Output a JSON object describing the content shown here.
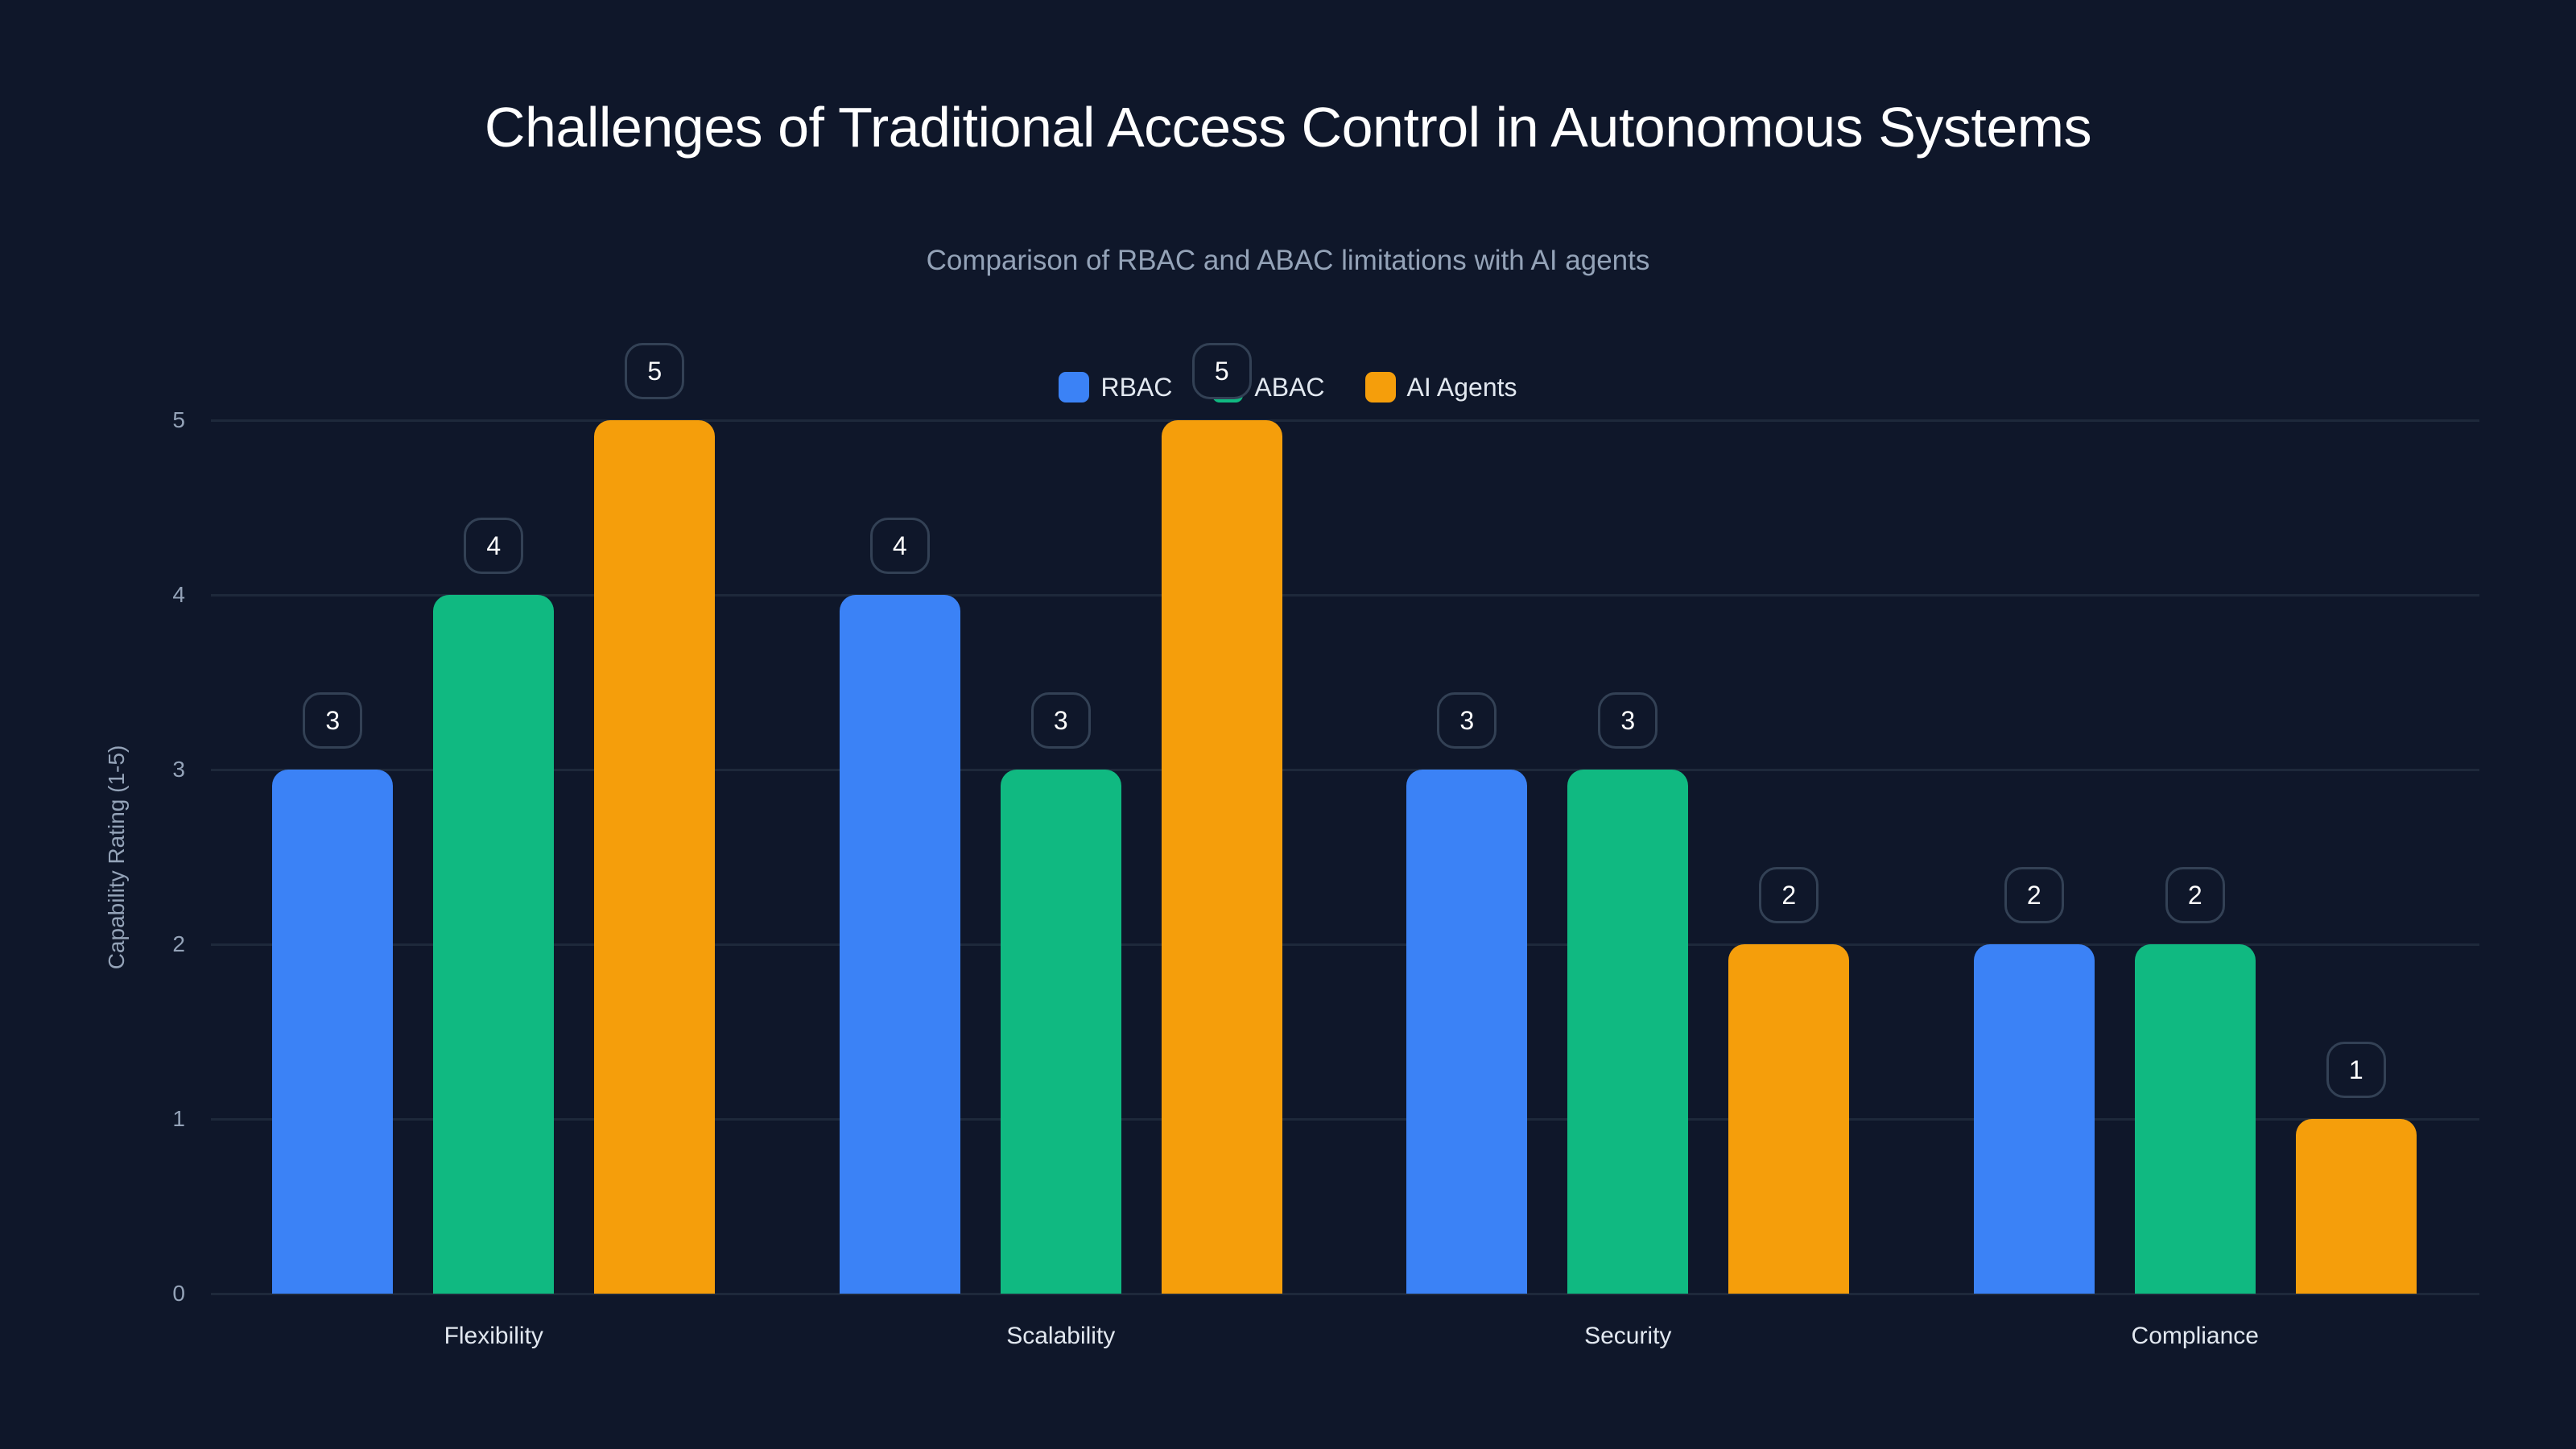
{
  "chart_data": {
    "type": "bar",
    "title": "Challenges of Traditional Access Control in Autonomous Systems",
    "subtitle": "Comparison of RBAC and ABAC limitations with AI agents",
    "xlabel": "",
    "ylabel": "Capability Rating (1-5)",
    "ylim": [
      0,
      5
    ],
    "yticks": [
      "0",
      "1",
      "2",
      "3",
      "4",
      "5"
    ],
    "grid": true,
    "legend_position": "top-center",
    "categories": [
      "Flexibility",
      "Scalability",
      "Security",
      "Compliance"
    ],
    "series": [
      {
        "name": "RBAC",
        "color": "#3b82f6",
        "values": [
          3,
          4,
          3,
          2
        ]
      },
      {
        "name": "ABAC",
        "color": "#10b981",
        "values": [
          4,
          3,
          3,
          2
        ]
      },
      {
        "name": "AI Agents",
        "color": "#f59e0b",
        "values": [
          5,
          5,
          2,
          1
        ]
      }
    ]
  },
  "colors": {
    "background": "#0f172a",
    "grid": "#1e293b",
    "muted_text": "#94a3b8",
    "label_border": "#334155"
  }
}
